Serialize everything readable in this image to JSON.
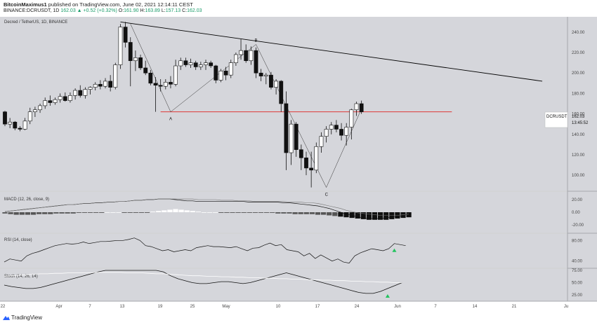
{
  "header": {
    "publisher": "BitcoinMaximus1",
    "published_text": "published on TradingView.com, June 02, 2021 12:14:11 CEST",
    "symbol_line": "BINANCE:DCRUSDT, 1D",
    "ohlc": {
      "change": "162.03 ▲ +0.52 (+0.32%)",
      "o_label": "O:",
      "o": "161.90",
      "h_label": "H:",
      "h": "163.89",
      "l_label": "L:",
      "l": "157.13",
      "c_label": "C:",
      "c": "162.03"
    }
  },
  "legend_title": "Decred / TetherUS, 1D, BINANCE",
  "price_tag": {
    "symbol": "DCRUSDT",
    "price": "162.03",
    "timer": "13:45:52"
  },
  "annotations": {
    "a": "A",
    "b": "B",
    "c": "C"
  },
  "indicators": {
    "macd_label": "MACD (12, 26, close, 9)",
    "rsi_label": "RSI (14, close)",
    "stoch_label": "Stoch (14, 26, 14)"
  },
  "footer": {
    "brand": "TradingView"
  },
  "colors": {
    "pane_bg": "#d5d6db",
    "bull": "#ffffff",
    "bear": "#111111",
    "support": "#e02020",
    "trend": "#000000",
    "arrow": "#22c35e"
  },
  "chart_data": [
    {
      "type": "candlestick",
      "title": "Decred / TetherUS, 1D, BINANCE",
      "ylim": [
        85,
        255
      ],
      "y_ticks": [
        100,
        120,
        140,
        160,
        180,
        200,
        220,
        240
      ],
      "x_tick_labels": [
        "22",
        "Apr",
        "7",
        "13",
        "19",
        "25",
        "May",
        "10",
        "17",
        "24",
        "Jun",
        "7",
        "14",
        "21",
        "Ju"
      ],
      "candles": [
        {
          "o": 162,
          "h": 163,
          "l": 148,
          "c": 150
        },
        {
          "o": 150,
          "h": 156,
          "l": 146,
          "c": 152
        },
        {
          "o": 152,
          "h": 153,
          "l": 144,
          "c": 146
        },
        {
          "o": 146,
          "h": 148,
          "l": 143,
          "c": 145
        },
        {
          "o": 145,
          "h": 156,
          "l": 144,
          "c": 153
        },
        {
          "o": 153,
          "h": 166,
          "l": 150,
          "c": 162
        },
        {
          "o": 162,
          "h": 167,
          "l": 157,
          "c": 164
        },
        {
          "o": 164,
          "h": 170,
          "l": 161,
          "c": 168
        },
        {
          "o": 168,
          "h": 176,
          "l": 165,
          "c": 173
        },
        {
          "o": 173,
          "h": 178,
          "l": 168,
          "c": 171
        },
        {
          "o": 171,
          "h": 176,
          "l": 169,
          "c": 174
        },
        {
          "o": 174,
          "h": 180,
          "l": 171,
          "c": 177
        },
        {
          "o": 177,
          "h": 181,
          "l": 172,
          "c": 173
        },
        {
          "o": 173,
          "h": 181,
          "l": 171,
          "c": 178
        },
        {
          "o": 178,
          "h": 185,
          "l": 174,
          "c": 183
        },
        {
          "o": 183,
          "h": 188,
          "l": 176,
          "c": 178
        },
        {
          "o": 178,
          "h": 186,
          "l": 175,
          "c": 184
        },
        {
          "o": 184,
          "h": 187,
          "l": 179,
          "c": 186
        },
        {
          "o": 186,
          "h": 191,
          "l": 183,
          "c": 189
        },
        {
          "o": 189,
          "h": 193,
          "l": 184,
          "c": 187
        },
        {
          "o": 187,
          "h": 195,
          "l": 185,
          "c": 192
        },
        {
          "o": 192,
          "h": 198,
          "l": 182,
          "c": 186
        },
        {
          "o": 186,
          "h": 210,
          "l": 184,
          "c": 208
        },
        {
          "o": 208,
          "h": 248,
          "l": 204,
          "c": 245
        },
        {
          "o": 245,
          "h": 250,
          "l": 225,
          "c": 230
        },
        {
          "o": 230,
          "h": 235,
          "l": 187,
          "c": 212
        },
        {
          "o": 212,
          "h": 222,
          "l": 202,
          "c": 215
        },
        {
          "o": 215,
          "h": 218,
          "l": 203,
          "c": 205
        },
        {
          "o": 205,
          "h": 212,
          "l": 198,
          "c": 200
        },
        {
          "o": 200,
          "h": 203,
          "l": 188,
          "c": 190
        },
        {
          "o": 190,
          "h": 196,
          "l": 162,
          "c": 188
        },
        {
          "o": 188,
          "h": 194,
          "l": 182,
          "c": 187
        },
        {
          "o": 187,
          "h": 194,
          "l": 184,
          "c": 191
        },
        {
          "o": 191,
          "h": 197,
          "l": 185,
          "c": 189
        },
        {
          "o": 189,
          "h": 213,
          "l": 187,
          "c": 207
        },
        {
          "o": 207,
          "h": 215,
          "l": 203,
          "c": 212
        },
        {
          "o": 212,
          "h": 215,
          "l": 206,
          "c": 208
        },
        {
          "o": 208,
          "h": 214,
          "l": 205,
          "c": 210
        },
        {
          "o": 210,
          "h": 212,
          "l": 203,
          "c": 206
        },
        {
          "o": 206,
          "h": 211,
          "l": 203,
          "c": 208
        },
        {
          "o": 208,
          "h": 213,
          "l": 203,
          "c": 210
        },
        {
          "o": 210,
          "h": 212,
          "l": 205,
          "c": 207
        },
        {
          "o": 207,
          "h": 208,
          "l": 190,
          "c": 193
        },
        {
          "o": 193,
          "h": 204,
          "l": 191,
          "c": 202
        },
        {
          "o": 202,
          "h": 206,
          "l": 193,
          "c": 198
        },
        {
          "o": 198,
          "h": 213,
          "l": 195,
          "c": 210
        },
        {
          "o": 210,
          "h": 220,
          "l": 207,
          "c": 218
        },
        {
          "o": 218,
          "h": 233,
          "l": 213,
          "c": 222
        },
        {
          "o": 222,
          "h": 228,
          "l": 210,
          "c": 212
        },
        {
          "o": 212,
          "h": 226,
          "l": 208,
          "c": 222
        },
        {
          "o": 222,
          "h": 225,
          "l": 195,
          "c": 200
        },
        {
          "o": 200,
          "h": 204,
          "l": 192,
          "c": 197
        },
        {
          "o": 197,
          "h": 200,
          "l": 189,
          "c": 198
        },
        {
          "o": 198,
          "h": 201,
          "l": 184,
          "c": 186
        },
        {
          "o": 186,
          "h": 194,
          "l": 179,
          "c": 192
        },
        {
          "o": 192,
          "h": 193,
          "l": 162,
          "c": 170
        },
        {
          "o": 170,
          "h": 182,
          "l": 105,
          "c": 122
        },
        {
          "o": 122,
          "h": 154,
          "l": 110,
          "c": 150
        },
        {
          "o": 150,
          "h": 152,
          "l": 118,
          "c": 125
        },
        {
          "o": 125,
          "h": 130,
          "l": 105,
          "c": 117
        },
        {
          "o": 117,
          "h": 123,
          "l": 100,
          "c": 107
        },
        {
          "o": 107,
          "h": 123,
          "l": 88,
          "c": 105
        },
        {
          "o": 105,
          "h": 132,
          "l": 102,
          "c": 128
        },
        {
          "o": 128,
          "h": 142,
          "l": 122,
          "c": 138
        },
        {
          "o": 138,
          "h": 148,
          "l": 132,
          "c": 145
        },
        {
          "o": 145,
          "h": 152,
          "l": 140,
          "c": 149
        },
        {
          "o": 149,
          "h": 154,
          "l": 142,
          "c": 145
        },
        {
          "o": 145,
          "h": 151,
          "l": 134,
          "c": 139
        },
        {
          "o": 139,
          "h": 151,
          "l": 129,
          "c": 147
        },
        {
          "o": 147,
          "h": 165,
          "l": 135,
          "c": 164
        },
        {
          "o": 164,
          "h": 172,
          "l": 158,
          "c": 170
        },
        {
          "o": 170,
          "h": 173,
          "l": 160,
          "c": 162
        }
      ],
      "support_level": 162,
      "trendline": {
        "from": {
          "index": 23,
          "price": 250
        },
        "to": {
          "index": 107,
          "price": 192
        }
      },
      "abc_path": [
        {
          "index": 25,
          "price": 248
        },
        {
          "index": 33,
          "price": 162
        },
        {
          "index": 50,
          "price": 228
        },
        {
          "index": 64,
          "price": 88
        },
        {
          "index": 71,
          "price": 165
        }
      ],
      "wave_points": {
        "A": {
          "index": 33,
          "price": 162
        },
        "B": {
          "index": 50,
          "price": 228
        },
        "C": {
          "index": 64,
          "price": 88
        }
      }
    },
    {
      "type": "bar",
      "title": "MACD (12, 26, close, 9)",
      "ylim": [
        -30,
        30
      ],
      "y_ticks": [
        20,
        0,
        -20
      ],
      "histogram": [
        -2,
        -3,
        -4,
        -4,
        -4,
        -4,
        -3,
        -3,
        -3,
        -2,
        -2,
        -2,
        -2,
        -1,
        -1,
        -1,
        -1,
        -1,
        0,
        0,
        0,
        -1,
        -1,
        -1,
        -1,
        -1,
        1,
        2,
        3,
        4,
        5,
        4,
        3,
        2,
        1,
        0,
        0,
        0,
        -1,
        -1,
        -1,
        -1,
        -1,
        -1,
        -1,
        -1,
        -1,
        -1,
        -2,
        -2,
        -2,
        -3,
        -3,
        -3,
        -3,
        -4,
        -4,
        -5,
        -6,
        -7,
        -8,
        -9,
        -10,
        -11,
        -12,
        -12,
        -12,
        -12,
        -11,
        -10,
        -9,
        -8
      ],
      "macd_line": [
        1,
        2,
        3,
        4,
        5,
        6,
        7,
        8,
        9,
        10,
        11,
        12,
        12,
        13,
        14,
        14,
        15,
        15,
        16,
        16,
        17,
        17,
        18,
        19,
        19,
        20,
        20,
        21,
        21,
        21,
        20,
        19,
        18,
        18,
        17,
        17,
        17,
        17,
        17,
        17,
        17,
        17,
        17,
        16,
        16,
        16,
        16,
        16,
        16,
        15,
        15,
        14,
        13,
        12,
        11,
        10,
        8,
        6,
        3,
        0,
        -3,
        -5,
        -7,
        -9,
        -10,
        -10,
        -10,
        -9,
        -8,
        -7,
        -5,
        -3
      ],
      "signal_line": [
        1,
        2,
        3,
        4,
        5,
        6,
        7,
        8,
        9,
        10,
        11,
        12,
        12,
        13,
        14,
        14,
        15,
        15,
        16,
        16,
        17,
        17,
        18,
        19,
        19,
        20,
        20,
        21,
        21,
        21,
        21,
        21,
        21,
        21,
        20,
        20,
        20,
        20,
        19,
        19,
        19,
        18,
        18,
        18,
        17,
        17,
        17,
        17,
        17,
        17,
        16,
        16,
        16,
        15,
        15,
        14,
        12,
        10,
        8,
        6,
        3,
        1,
        -1,
        -2,
        -3,
        -4,
        -5,
        -5,
        -5,
        -5,
        -4,
        -3
      ]
    },
    {
      "type": "line",
      "title": "RSI (14, close)",
      "ylim": [
        30,
        90
      ],
      "y_ticks": [
        80,
        40
      ],
      "series": [
        {
          "values": [
            38,
            44,
            42,
            40,
            50,
            55,
            58,
            62,
            66,
            70,
            72,
            74,
            73,
            74,
            77,
            74,
            76,
            78,
            78,
            79,
            80,
            80,
            82,
            85,
            80,
            70,
            68,
            64,
            60,
            62,
            58,
            60,
            62,
            60,
            66,
            68,
            70,
            68,
            68,
            67,
            66,
            68,
            64,
            60,
            65,
            66,
            71,
            75,
            70,
            72,
            62,
            60,
            58,
            50,
            55,
            45,
            52,
            46,
            40,
            44,
            38,
            36,
            50,
            56,
            60,
            64,
            62,
            60,
            64,
            74,
            72,
            70
          ]
        }
      ]
    },
    {
      "type": "line",
      "title": "Stoch (14, 26, 14)",
      "ylim": [
        15,
        75
      ],
      "y_ticks": [
        75,
        50,
        25
      ],
      "series": [
        {
          "values": [
            45,
            42,
            40,
            38,
            38,
            40,
            44,
            48,
            52,
            56,
            60,
            64,
            68,
            72,
            76,
            80,
            84,
            86,
            88,
            88,
            86,
            80,
            72,
            64,
            58,
            54,
            50,
            48,
            48,
            50,
            52,
            52,
            50,
            48,
            50,
            54,
            58,
            62,
            66,
            70,
            66,
            62,
            58,
            54,
            50,
            46,
            42,
            38,
            34,
            30,
            28,
            28,
            32,
            38,
            44,
            50
          ]
        },
        {
          "values": [
            63,
            64,
            65,
            66,
            67,
            68,
            68,
            69,
            69,
            70,
            70,
            70,
            70,
            71,
            71,
            71,
            71,
            70,
            70,
            70,
            69,
            68,
            68,
            67,
            66,
            65,
            64,
            64,
            63,
            63,
            62,
            62,
            61,
            61,
            60,
            60,
            59,
            59,
            58,
            58,
            57,
            57,
            56,
            56,
            55,
            55,
            54,
            54,
            53,
            53,
            52,
            52,
            51,
            51,
            50,
            50
          ]
        }
      ]
    }
  ]
}
